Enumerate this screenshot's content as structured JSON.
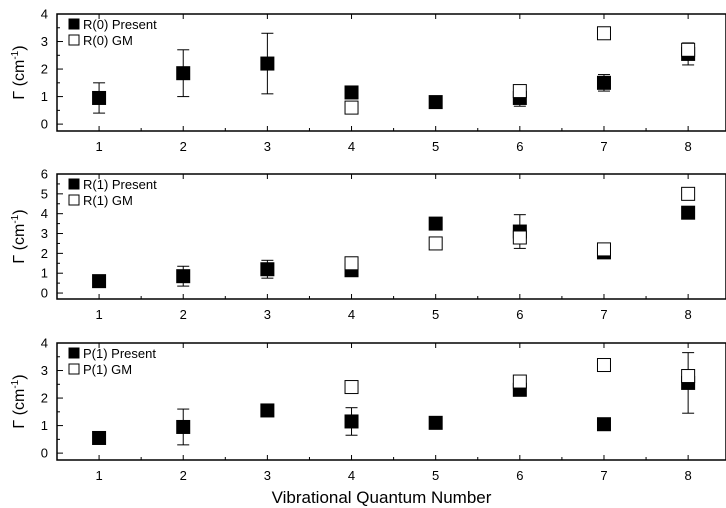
{
  "chart_data": [
    {
      "type": "scatter",
      "ylabel": "Γ (cm-1)",
      "xlabel": "",
      "xlim": [
        0.5,
        8.45
      ],
      "ylim": [
        -0.25,
        4
      ],
      "x_ticks": [
        1,
        2,
        3,
        4,
        5,
        6,
        7,
        8
      ],
      "y_ticks": [
        0,
        1,
        2,
        3,
        4
      ],
      "legend_position": "top-left",
      "grid": false,
      "series": [
        {
          "name": "R(0) Present",
          "marker": "filled-square",
          "x": [
            1,
            2,
            3,
            4,
            5,
            6,
            7,
            8
          ],
          "y": [
            0.95,
            1.85,
            2.2,
            1.15,
            0.8,
            0.95,
            1.5,
            2.55
          ],
          "err": [
            0.55,
            0.85,
            1.1,
            null,
            null,
            0.3,
            0.3,
            0.4
          ]
        },
        {
          "name": "R(0) GM",
          "marker": "open-square",
          "x": [
            4,
            6,
            7,
            8
          ],
          "y": [
            0.6,
            1.2,
            3.3,
            2.7
          ],
          "err": [
            null,
            null,
            null,
            null
          ]
        }
      ]
    },
    {
      "type": "scatter",
      "ylabel": "Γ (cm-1)",
      "xlabel": "",
      "xlim": [
        0.5,
        8.45
      ],
      "ylim": [
        -0.3,
        6
      ],
      "x_ticks": [
        1,
        2,
        3,
        4,
        5,
        6,
        7,
        8
      ],
      "y_ticks": [
        0,
        1,
        2,
        3,
        4,
        5,
        6
      ],
      "legend_position": "top-left",
      "grid": false,
      "series": [
        {
          "name": "R(1) Present",
          "marker": "filled-square",
          "x": [
            1,
            2,
            3,
            4,
            5,
            6,
            7,
            8
          ],
          "y": [
            0.6,
            0.85,
            1.2,
            1.15,
            3.5,
            3.1,
            2.05,
            4.05
          ],
          "err": [
            null,
            0.5,
            0.45,
            null,
            null,
            0.85,
            null,
            null
          ]
        },
        {
          "name": "R(1) GM",
          "marker": "open-square",
          "x": [
            4,
            5,
            6,
            7,
            8
          ],
          "y": [
            1.5,
            2.5,
            2.8,
            2.2,
            5.0
          ],
          "err": [
            null,
            null,
            null,
            null,
            null
          ]
        }
      ]
    },
    {
      "type": "scatter",
      "ylabel": "Γ (cm-1)",
      "xlabel": "Vibrational Quantum Number",
      "xlim": [
        0.5,
        8.45
      ],
      "ylim": [
        -0.25,
        4
      ],
      "x_ticks": [
        1,
        2,
        3,
        4,
        5,
        6,
        7,
        8
      ],
      "y_ticks": [
        0,
        1,
        2,
        3,
        4
      ],
      "legend_position": "top-left",
      "grid": false,
      "series": [
        {
          "name": "P(1) Present",
          "marker": "filled-square",
          "x": [
            1,
            2,
            3,
            4,
            5,
            6,
            7,
            8
          ],
          "y": [
            0.55,
            0.95,
            1.55,
            1.15,
            1.1,
            2.3,
            1.05,
            2.55
          ],
          "err": [
            null,
            0.65,
            null,
            0.5,
            null,
            null,
            null,
            1.1
          ]
        },
        {
          "name": "P(1) GM",
          "marker": "open-square",
          "x": [
            4,
            6,
            7,
            8
          ],
          "y": [
            2.4,
            2.6,
            3.2,
            2.8
          ],
          "err": [
            null,
            null,
            null,
            null
          ]
        }
      ]
    }
  ]
}
